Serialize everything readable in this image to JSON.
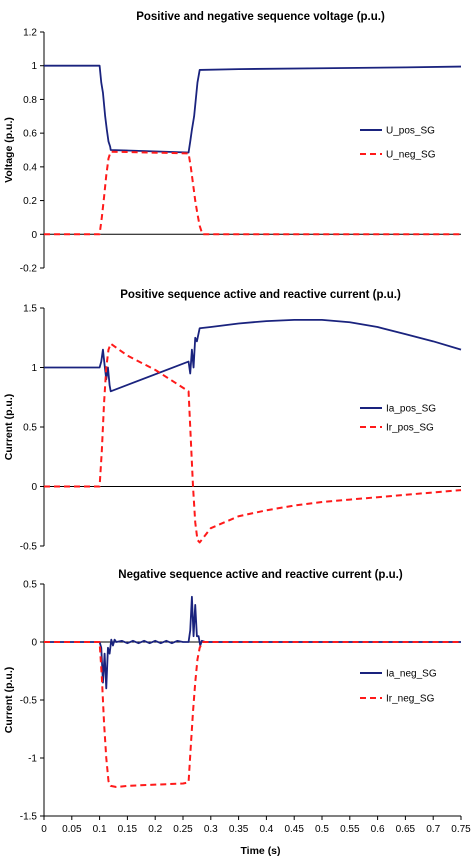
{
  "colors": {
    "pos": "#1a237e",
    "neg": "#ff1a1a"
  },
  "chart_data": [
    {
      "type": "line",
      "title": "Positive and negative sequence voltage (p.u.)",
      "xlabel": "",
      "ylabel": "Voltage (p.u.)",
      "xlim": [
        0,
        0.75
      ],
      "ylim": [
        -0.2,
        1.2
      ],
      "yticks": [
        -0.2,
        0,
        0.2,
        0.4,
        0.6,
        0.8,
        1,
        1.2
      ],
      "ytick_labels": [
        "-0.2",
        "0",
        "0.2",
        "0.4",
        "0.6",
        "0.8",
        "1",
        "1.2"
      ],
      "legend_position": "right",
      "series": [
        {
          "name": "U_pos_SG",
          "style": "solid",
          "color": "#1a237e",
          "x": [
            0,
            0.1,
            0.103,
            0.106,
            0.11,
            0.113,
            0.116,
            0.119,
            0.12,
            0.26,
            0.263,
            0.266,
            0.27,
            0.273,
            0.276,
            0.28,
            0.35,
            0.5,
            0.65,
            0.75
          ],
          "y": [
            1,
            1,
            0.9,
            0.84,
            0.7,
            0.62,
            0.55,
            0.52,
            0.5,
            0.485,
            0.55,
            0.62,
            0.7,
            0.8,
            0.9,
            0.975,
            0.98,
            0.985,
            0.99,
            0.995
          ]
        },
        {
          "name": "U_neg_SG",
          "style": "dashed",
          "color": "#ff1a1a",
          "x": [
            0,
            0.1,
            0.104,
            0.108,
            0.112,
            0.116,
            0.12,
            0.26,
            0.264,
            0.268,
            0.272,
            0.276,
            0.28,
            0.285,
            0.75
          ],
          "y": [
            0,
            0,
            0.1,
            0.22,
            0.35,
            0.45,
            0.49,
            0.48,
            0.4,
            0.3,
            0.2,
            0.12,
            0.05,
            0,
            0
          ]
        }
      ]
    },
    {
      "type": "line",
      "title": "Positive sequence active and reactive current (p.u.)",
      "xlabel": "",
      "ylabel": "Current (p.u.)",
      "xlim": [
        0,
        0.75
      ],
      "ylim": [
        -0.5,
        1.5
      ],
      "yticks": [
        -0.5,
        0,
        0.5,
        1,
        1.5
      ],
      "ytick_labels": [
        "-0.5",
        "0",
        "0.5",
        "1",
        "1.5"
      ],
      "legend_position": "right",
      "series": [
        {
          "name": "Ia_pos_SG",
          "style": "solid",
          "color": "#1a237e",
          "x": [
            0,
            0.1,
            0.103,
            0.106,
            0.109,
            0.112,
            0.115,
            0.118,
            0.12,
            0.26,
            0.263,
            0.266,
            0.269,
            0.272,
            0.275,
            0.28,
            0.3,
            0.35,
            0.4,
            0.45,
            0.5,
            0.55,
            0.6,
            0.65,
            0.7,
            0.75
          ],
          "y": [
            1,
            1,
            1.05,
            1.15,
            1.02,
            0.9,
            1.0,
            0.85,
            0.8,
            1.05,
            0.95,
            1.15,
            1.0,
            1.25,
            1.22,
            1.33,
            1.34,
            1.37,
            1.39,
            1.4,
            1.4,
            1.38,
            1.34,
            1.28,
            1.22,
            1.15
          ]
        },
        {
          "name": "Ir_pos_SG",
          "style": "dashed",
          "color": "#ff1a1a",
          "x": [
            0,
            0.1,
            0.104,
            0.108,
            0.112,
            0.116,
            0.12,
            0.15,
            0.2,
            0.25,
            0.26,
            0.264,
            0.268,
            0.272,
            0.276,
            0.28,
            0.3,
            0.35,
            0.4,
            0.45,
            0.5,
            0.55,
            0.6,
            0.65,
            0.7,
            0.75
          ],
          "y": [
            0,
            0,
            0.3,
            0.7,
            1.0,
            1.15,
            1.2,
            1.1,
            0.98,
            0.83,
            0.8,
            0.4,
            0.0,
            -0.3,
            -0.45,
            -0.47,
            -0.35,
            -0.25,
            -0.2,
            -0.16,
            -0.13,
            -0.11,
            -0.09,
            -0.07,
            -0.05,
            -0.03
          ]
        }
      ]
    },
    {
      "type": "line",
      "title": "Negative sequence active and reactive current (p.u.)",
      "xlabel": "Time (s)",
      "ylabel": "Current (p.u.)",
      "xlim": [
        0,
        0.75
      ],
      "xticks": [
        0,
        0.05,
        0.1,
        0.15,
        0.2,
        0.25,
        0.3,
        0.35,
        0.4,
        0.45,
        0.5,
        0.55,
        0.6,
        0.65,
        0.7,
        0.75
      ],
      "xtick_labels": [
        "0",
        "0.05",
        "0.1",
        "0.15",
        "0.2",
        "0.25",
        "0.3",
        "0.35",
        "0.4",
        "0.45",
        "0.5",
        "0.55",
        "0.6",
        "0.65",
        "0.7",
        "0.75"
      ],
      "ylim": [
        -1.5,
        0.5
      ],
      "yticks": [
        -1.5,
        -1,
        -0.5,
        0,
        0.5
      ],
      "ytick_labels": [
        "-1.5",
        "-1",
        "-0.5",
        "0",
        "0.5"
      ],
      "legend_position": "right",
      "series": [
        {
          "name": "Ia_neg_SG",
          "style": "solid",
          "color": "#1a237e",
          "x": [
            0,
            0.1,
            0.103,
            0.106,
            0.109,
            0.112,
            0.115,
            0.118,
            0.121,
            0.124,
            0.127,
            0.13,
            0.14,
            0.15,
            0.16,
            0.17,
            0.18,
            0.19,
            0.2,
            0.21,
            0.22,
            0.23,
            0.24,
            0.25,
            0.26,
            0.263,
            0.266,
            0.269,
            0.272,
            0.275,
            0.278,
            0.281,
            0.284,
            0.29,
            0.75
          ],
          "y": [
            0,
            0,
            -0.05,
            -0.35,
            -0.1,
            -0.4,
            -0.05,
            -0.1,
            0.02,
            -0.03,
            0.02,
            0,
            0.01,
            -0.01,
            0.01,
            -0.01,
            0.01,
            -0.01,
            0.01,
            -0.01,
            0.01,
            -0.01,
            0.01,
            0,
            0,
            0.1,
            0.39,
            0.05,
            0.32,
            0.05,
            0.05,
            -0.03,
            0.01,
            0,
            0
          ]
        },
        {
          "name": "Ir_neg_SG",
          "style": "dashed",
          "color": "#ff1a1a",
          "x": [
            0,
            0.1,
            0.104,
            0.108,
            0.112,
            0.116,
            0.12,
            0.13,
            0.15,
            0.2,
            0.25,
            0.26,
            0.264,
            0.268,
            0.272,
            0.276,
            0.28,
            0.285,
            0.75
          ],
          "y": [
            0,
            0,
            -0.3,
            -0.7,
            -1.0,
            -1.2,
            -1.24,
            -1.25,
            -1.24,
            -1.23,
            -1.22,
            -1.21,
            -0.9,
            -0.6,
            -0.35,
            -0.15,
            -0.05,
            0,
            0
          ]
        }
      ]
    }
  ]
}
